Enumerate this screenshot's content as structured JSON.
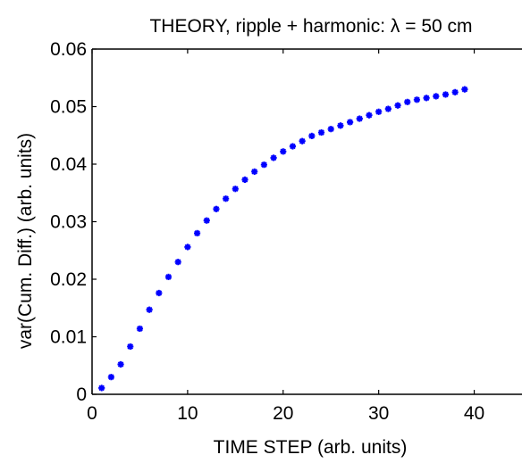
{
  "chart_data": {
    "type": "scatter",
    "title": "THEORY, ripple + harmonic: λ = 50 cm",
    "xlabel": "TIME STEP (arb. units)",
    "ylabel": "var(Cum. Diff.) (arb. units)",
    "xlim": [
      0,
      45
    ],
    "ylim": [
      0,
      0.06
    ],
    "xticks": [
      0,
      10,
      20,
      30,
      40
    ],
    "xtick_labels": [
      "0",
      "10",
      "20",
      "30",
      "40"
    ],
    "yticks": [
      0,
      0.01,
      0.02,
      0.03,
      0.04,
      0.05,
      0.06
    ],
    "ytick_labels": [
      "0",
      "0.01",
      "0.02",
      "0.03",
      "0.04",
      "0.05",
      "0.06"
    ],
    "grid": false,
    "marker": "asterisk",
    "color": "#0000ff",
    "series": [
      {
        "x": [
          1,
          2,
          3,
          4,
          5,
          6,
          7,
          8,
          9,
          10,
          11,
          12,
          13,
          14,
          15,
          16,
          17,
          18,
          19,
          20,
          21,
          22,
          23,
          24,
          25,
          26,
          27,
          28,
          29,
          30,
          31,
          32,
          33,
          34,
          35,
          36,
          37,
          38,
          39
        ],
        "y": [
          0.0011,
          0.003,
          0.0052,
          0.0083,
          0.0114,
          0.0147,
          0.0176,
          0.0204,
          0.023,
          0.0256,
          0.028,
          0.0302,
          0.0322,
          0.034,
          0.0357,
          0.0373,
          0.0387,
          0.0399,
          0.0411,
          0.0422,
          0.0431,
          0.044,
          0.0449,
          0.0455,
          0.0461,
          0.0467,
          0.0473,
          0.0479,
          0.0485,
          0.0491,
          0.0496,
          0.0502,
          0.0508,
          0.0512,
          0.0515,
          0.0518,
          0.0521,
          0.0525,
          0.053
        ]
      }
    ]
  }
}
